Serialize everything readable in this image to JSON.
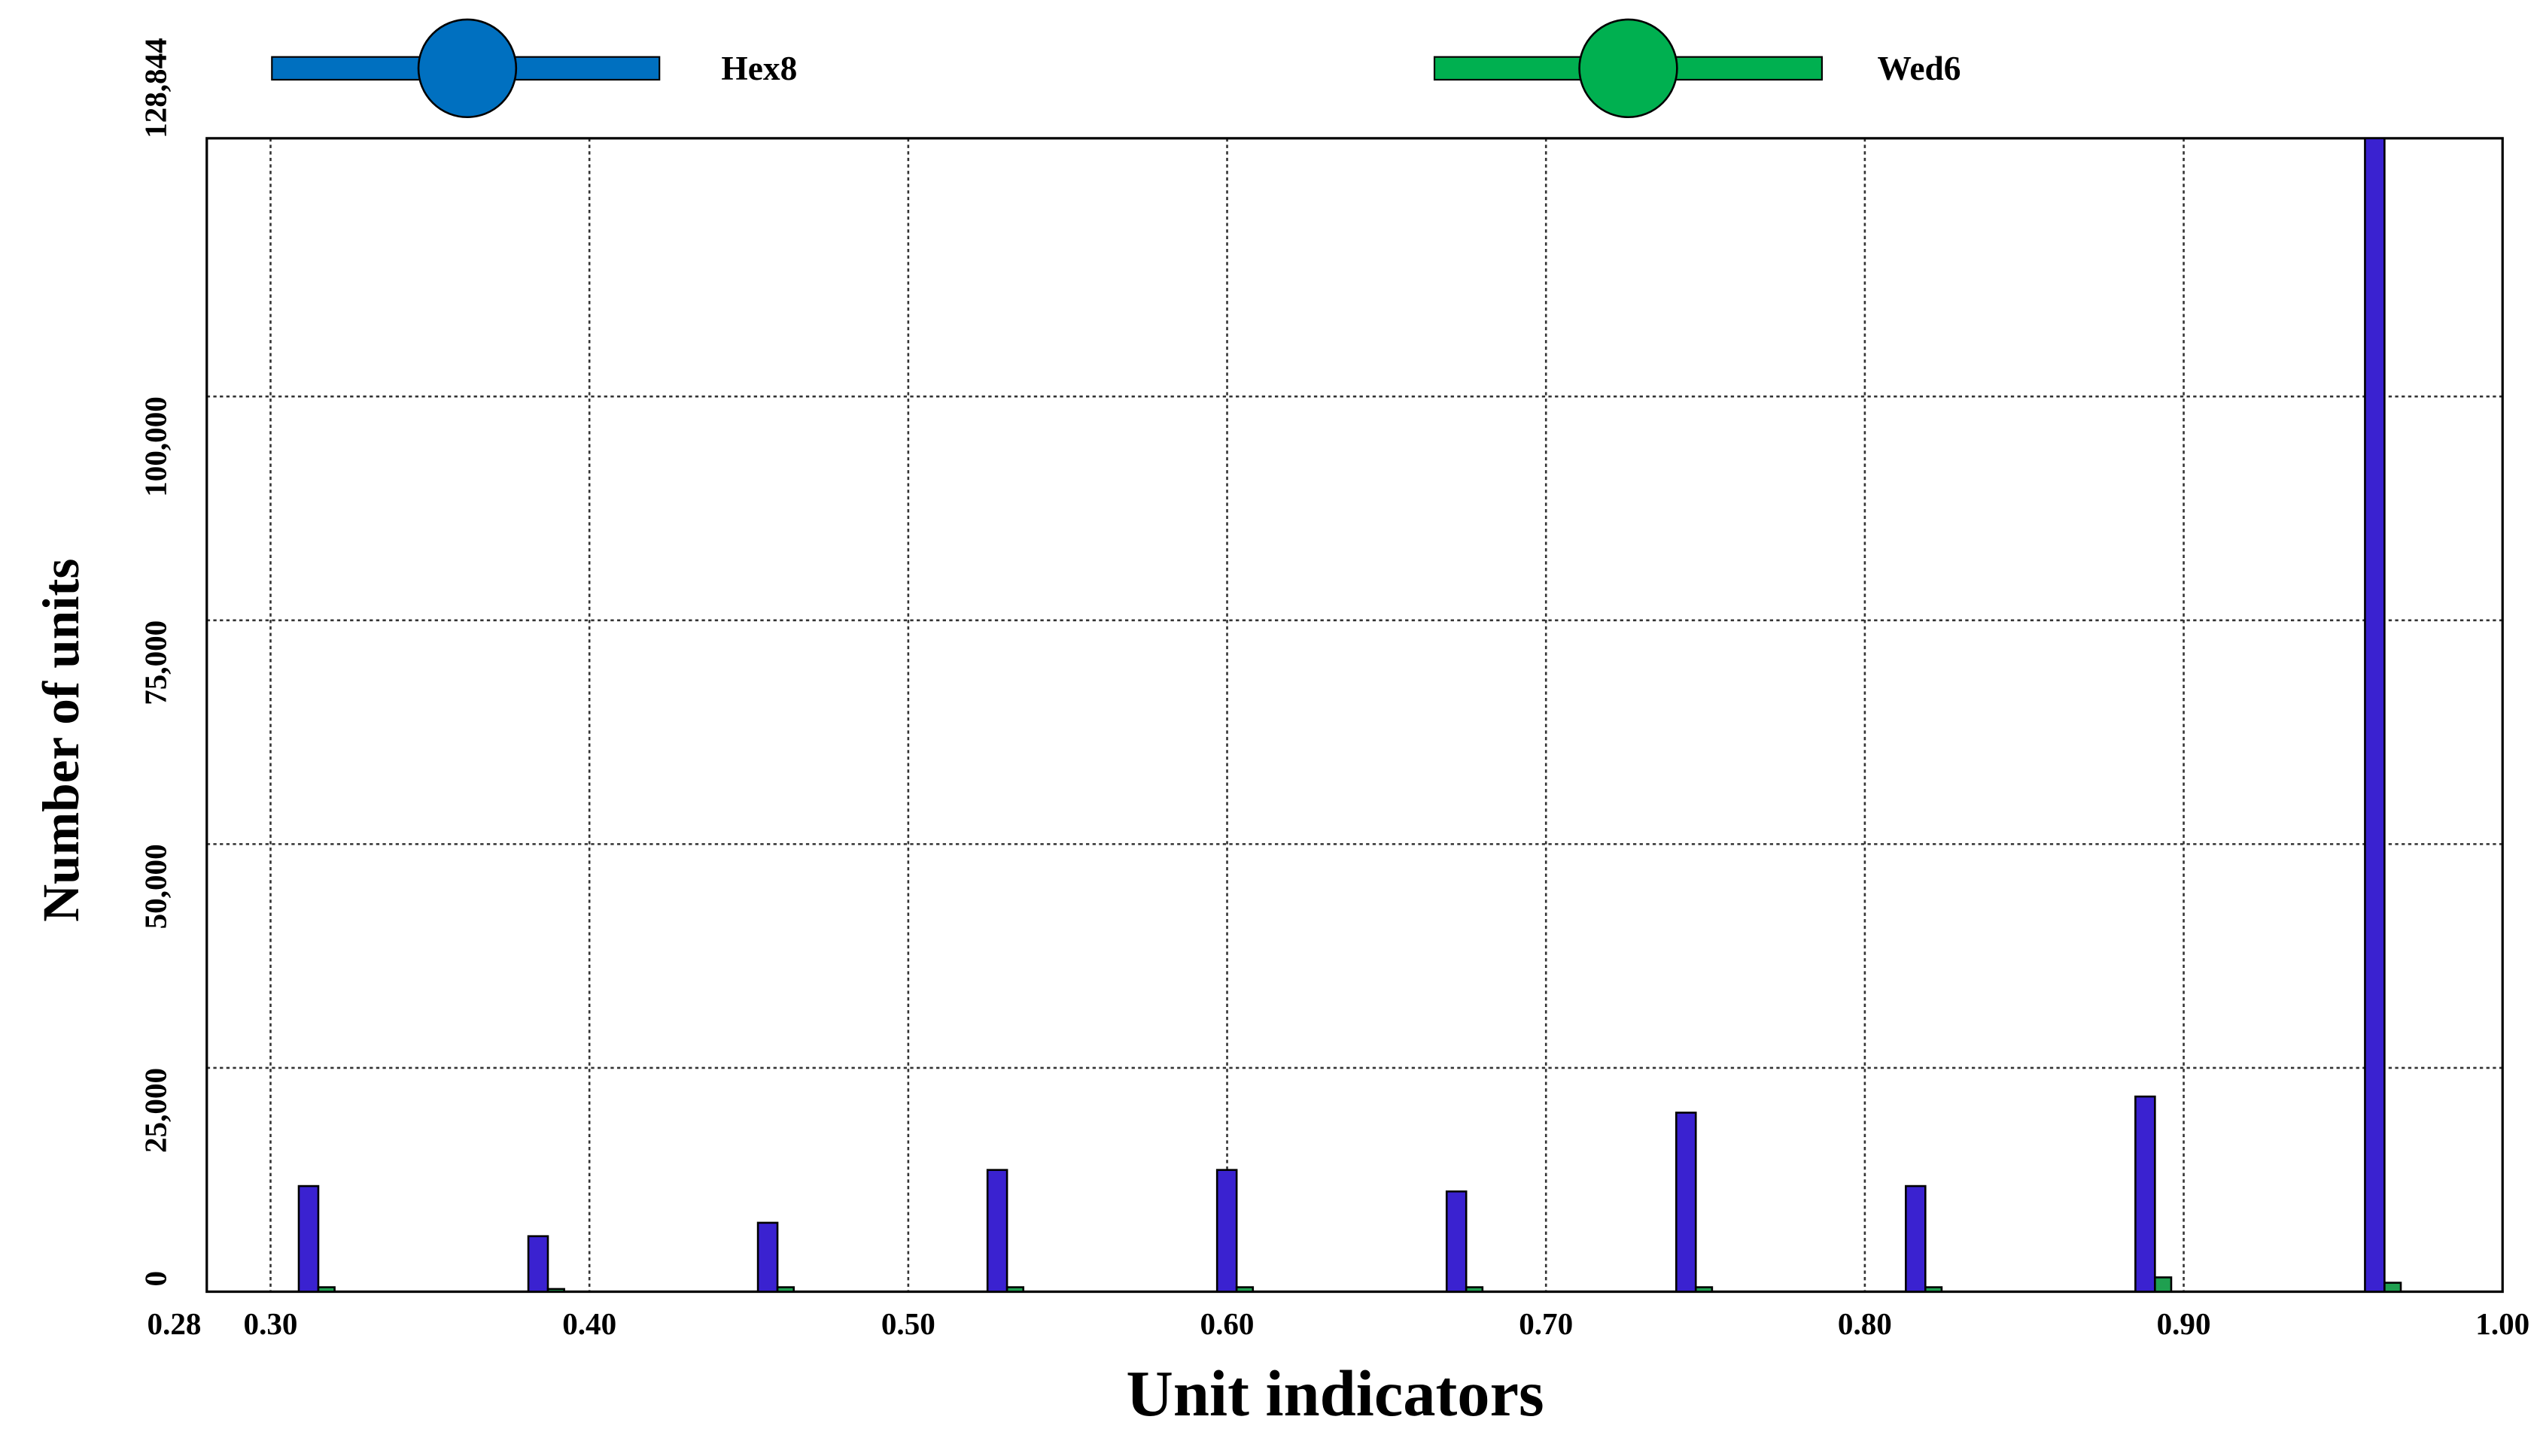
{
  "chart_data": {
    "type": "bar",
    "x_label": "Unit indicators",
    "y_label": "Number of units",
    "x": [
      0.316,
      0.388,
      0.46,
      0.532,
      0.604,
      0.676,
      0.748,
      0.82,
      0.892,
      0.964
    ],
    "series": [
      {
        "name": "Hex8",
        "color": "#3a22d0",
        "legend_color": "#0070c0",
        "values": [
          11800,
          6200,
          7700,
          13600,
          13600,
          11200,
          20000,
          11800,
          21800,
          128844
        ]
      },
      {
        "name": "Wed6",
        "color": "#1fa050",
        "legend_color": "#00b050",
        "values": [
          500,
          300,
          500,
          500,
          500,
          500,
          500,
          500,
          1600,
          1000
        ]
      }
    ],
    "xlim": [
      0.28,
      1.0
    ],
    "xticks": [
      0.28,
      {
        "value": 0.3,
        "label": "0.30"
      },
      {
        "value": 0.4,
        "label": "0.40"
      },
      {
        "value": 0.5,
        "label": "0.50"
      },
      {
        "value": 0.6,
        "label": "0.60"
      },
      {
        "value": 0.7,
        "label": "0.70"
      },
      {
        "value": 0.8,
        "label": "0.80"
      },
      {
        "value": 0.9,
        "label": "0.90"
      },
      {
        "value": 1.0,
        "label": "1.00"
      }
    ],
    "ylim": [
      0,
      128844
    ],
    "yticks": [
      0,
      {
        "value": 25000,
        "label": "25,000"
      },
      {
        "value": 50000,
        "label": "50,000"
      },
      {
        "value": 75000,
        "label": "75,000"
      },
      {
        "value": 100000,
        "label": "100,000"
      },
      {
        "value": 128844,
        "label": "128,844"
      }
    ],
    "grid": true
  }
}
